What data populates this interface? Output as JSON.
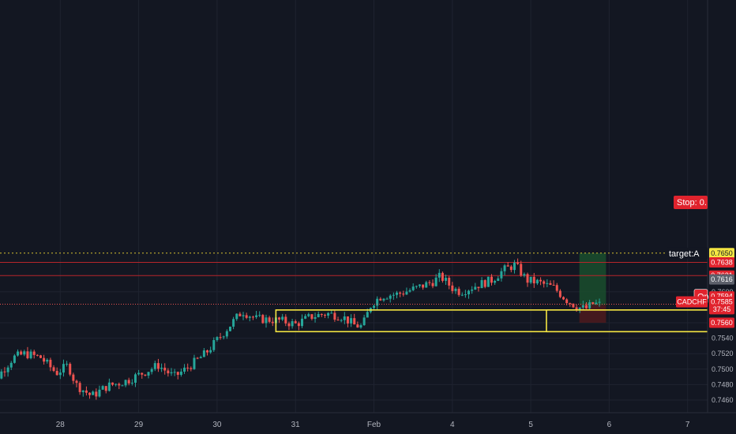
{
  "chart_data": {
    "type": "candlestick",
    "symbol": "CADCHF",
    "y_range": [
      0.745,
      0.7652
    ],
    "y_ticks": [
      "0.7460",
      "0.7480",
      "0.7500",
      "0.7520",
      "0.7540",
      "0.7560",
      "0.7600"
    ],
    "x_labels": [
      {
        "label": "28",
        "day": 1
      },
      {
        "label": "29",
        "day": 2
      },
      {
        "label": "30",
        "day": 3
      },
      {
        "label": "31",
        "day": 4
      },
      {
        "label": "Feb",
        "day": 5
      },
      {
        "label": "4",
        "day": 6
      },
      {
        "label": "5",
        "day": 7
      },
      {
        "label": "6",
        "day": 8
      },
      {
        "label": "7",
        "day": 9
      }
    ],
    "price_path": [
      [
        0.0,
        0.7475
      ],
      [
        0.2,
        0.749
      ],
      [
        0.4,
        0.7515
      ],
      [
        0.55,
        0.752
      ],
      [
        0.75,
        0.7515
      ],
      [
        0.95,
        0.7495
      ],
      [
        1.1,
        0.7505
      ],
      [
        1.2,
        0.748
      ],
      [
        1.4,
        0.7465
      ],
      [
        1.6,
        0.7478
      ],
      [
        1.85,
        0.7485
      ],
      [
        2.05,
        0.7495
      ],
      [
        2.25,
        0.7505
      ],
      [
        2.45,
        0.749
      ],
      [
        2.6,
        0.75
      ],
      [
        2.85,
        0.752
      ],
      [
        3.15,
        0.7555
      ],
      [
        3.32,
        0.7575
      ],
      [
        3.5,
        0.7565
      ],
      [
        3.8,
        0.7563
      ],
      [
        4.0,
        0.7558
      ],
      [
        4.2,
        0.7568
      ],
      [
        4.4,
        0.7572
      ],
      [
        4.6,
        0.7568
      ],
      [
        4.75,
        0.7557
      ],
      [
        4.85,
        0.7555
      ],
      [
        4.97,
        0.7585
      ],
      [
        5.1,
        0.7595
      ],
      [
        5.3,
        0.7597
      ],
      [
        5.55,
        0.7605
      ],
      [
        5.75,
        0.7613
      ],
      [
        5.85,
        0.762
      ],
      [
        6.0,
        0.7605
      ],
      [
        6.1,
        0.76
      ],
      [
        6.3,
        0.7608
      ],
      [
        6.5,
        0.7615
      ],
      [
        6.65,
        0.7628
      ],
      [
        6.8,
        0.7635
      ],
      [
        6.95,
        0.7615
      ],
      [
        7.1,
        0.7612
      ],
      [
        7.3,
        0.7605
      ],
      [
        7.45,
        0.759
      ],
      [
        7.6,
        0.758
      ],
      [
        7.7,
        0.7578
      ],
      [
        7.8,
        0.7585
      ],
      [
        7.9,
        0.7583
      ]
    ],
    "current_price": "0.7585",
    "countdown": "37:45",
    "range_box": {
      "day_start": 3.75,
      "day_end": 7.2,
      "top": 0.75765,
      "bottom": 0.75485,
      "color": "#f5e642"
    },
    "horizontal_lines": [
      {
        "price": 0.765,
        "color": "#d4c030",
        "style": "dotted"
      },
      {
        "price": 0.7638,
        "color": "#b7252a",
        "style": "solid"
      },
      {
        "price": 0.7621,
        "color": "#b7252a",
        "style": "solid"
      }
    ],
    "position": {
      "day_start": 7.62,
      "day_end": 7.96,
      "target": 0.765,
      "entry": 0.7583,
      "stop": 0.756,
      "target_label": "target:A",
      "entry_label": "Op",
      "stop_label": "Stop: 0."
    },
    "price_badges": [
      {
        "text": "0.7650",
        "price": 0.765,
        "bg": "#f5e642",
        "dark_text": true
      },
      {
        "text": "0.7638",
        "price": 0.7638,
        "bg": "#e0232d",
        "dark_text": false
      },
      {
        "text": "0.7621",
        "price": 0.7621,
        "bg": "#e0232d",
        "dark_text": false
      },
      {
        "text": "0.7616",
        "price": 0.7616,
        "bg": "#5d606b",
        "dark_text": false
      },
      {
        "text": "0.7594",
        "price": 0.7594,
        "bg": "#e0232d",
        "dark_text": false
      },
      {
        "text": "0.7585",
        "price": 0.7587,
        "bg": "#e0232d",
        "dark_text": false
      },
      {
        "text": "37:45",
        "price": 0.75775,
        "bg": "#e0232d",
        "dark_text": false
      },
      {
        "text": "0.7560",
        "price": 0.756,
        "bg": "#e0232d",
        "dark_text": false
      }
    ],
    "colors": {
      "background": "#131722",
      "up": "#26a69a",
      "down": "#ef5350",
      "grid": "#1f2330",
      "axis_text": "#b2b5be",
      "profit_zone": "#1a4a2c",
      "loss_zone": "#4a1a1e",
      "current_line": "#ef5350"
    }
  }
}
